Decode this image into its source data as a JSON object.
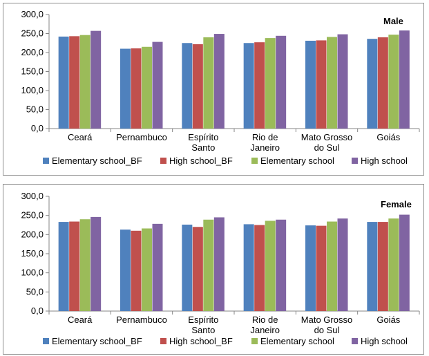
{
  "chart_data": [
    {
      "type": "bar",
      "title": "Male",
      "categories": [
        [
          "Ceará"
        ],
        [
          "Pernambuco"
        ],
        [
          "Espírito",
          "Santo"
        ],
        [
          "Rio de",
          "Janeiro"
        ],
        [
          "Mato Grosso",
          "do Sul"
        ],
        [
          "Goiás"
        ]
      ],
      "series": [
        {
          "name": "Elementary school_BF",
          "color": "#4f81bd",
          "values": [
            242,
            210,
            225,
            225,
            231,
            236
          ]
        },
        {
          "name": "High school_BF",
          "color": "#c0504d",
          "values": [
            243,
            211,
            222,
            227,
            232,
            240
          ]
        },
        {
          "name": "Elementary school",
          "color": "#9bbb59",
          "values": [
            246,
            215,
            240,
            238,
            241,
            247
          ]
        },
        {
          "name": "High school",
          "color": "#8064a2",
          "values": [
            257,
            228,
            249,
            244,
            248,
            258
          ]
        }
      ],
      "ylim": [
        0,
        300
      ],
      "yticks": [
        "0,0",
        "50,0",
        "100,0",
        "150,0",
        "200,0",
        "250,0",
        "300,0"
      ],
      "legend": "bottom"
    },
    {
      "type": "bar",
      "title": "Female",
      "categories": [
        [
          "Ceará"
        ],
        [
          "Pernambuco"
        ],
        [
          "Espírito",
          "Santo"
        ],
        [
          "Rio de",
          "Janeiro"
        ],
        [
          "Mato Grosso",
          "do Sul"
        ],
        [
          "Goiás"
        ]
      ],
      "series": [
        {
          "name": "Elementary school_BF",
          "color": "#4f81bd",
          "values": [
            233,
            213,
            226,
            227,
            224,
            233
          ]
        },
        {
          "name": "High school_BF",
          "color": "#c0504d",
          "values": [
            234,
            210,
            220,
            225,
            223,
            233
          ]
        },
        {
          "name": "Elementary school",
          "color": "#9bbb59",
          "values": [
            240,
            216,
            239,
            236,
            234,
            242
          ]
        },
        {
          "name": "High school",
          "color": "#8064a2",
          "values": [
            246,
            228,
            245,
            239,
            242,
            252
          ]
        }
      ],
      "ylim": [
        0,
        300
      ],
      "yticks": [
        "0,0",
        "50,0",
        "100,0",
        "150,0",
        "200,0",
        "250,0",
        "300,0"
      ],
      "legend": "bottom"
    }
  ]
}
